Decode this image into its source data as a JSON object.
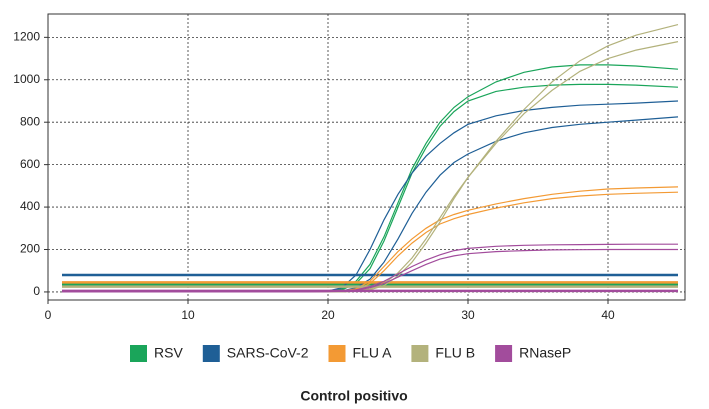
{
  "chart_data": {
    "type": "line",
    "title": "Control positivo",
    "x": [
      1,
      5,
      10,
      15,
      18,
      20,
      21,
      22,
      23,
      24,
      25,
      26,
      27,
      28,
      29,
      30,
      32,
      34,
      36,
      38,
      40,
      42,
      45
    ],
    "xlim": [
      0,
      45.5
    ],
    "xticks": [
      0,
      10,
      20,
      30,
      40
    ],
    "ylim": [
      -38,
      1310
    ],
    "yticks": [
      0,
      200,
      400,
      600,
      800,
      1000,
      1200
    ],
    "grid": true,
    "series": [
      {
        "name": "RSV",
        "color": "#1aa55a",
        "threshold": 35,
        "curves": [
          [
            0,
            0,
            0,
            0,
            0,
            5,
            15,
            50,
            130,
            260,
            420,
            580,
            700,
            800,
            870,
            920,
            990,
            1035,
            1060,
            1070,
            1070,
            1065,
            1050
          ],
          [
            0,
            0,
            0,
            0,
            0,
            3,
            10,
            40,
            110,
            240,
            400,
            560,
            680,
            780,
            850,
            900,
            945,
            965,
            975,
            978,
            978,
            975,
            965
          ]
        ]
      },
      {
        "name": "SARS-CoV-2",
        "color": "#1f5f96",
        "threshold": 80,
        "curves": [
          [
            0,
            0,
            0,
            0,
            0,
            5,
            20,
            80,
            200,
            340,
            460,
            560,
            640,
            700,
            750,
            790,
            830,
            855,
            870,
            880,
            885,
            890,
            900
          ],
          [
            0,
            0,
            0,
            0,
            0,
            2,
            5,
            20,
            60,
            140,
            250,
            370,
            470,
            550,
            610,
            650,
            710,
            750,
            775,
            790,
            800,
            810,
            825
          ]
        ]
      },
      {
        "name": "FLU A",
        "color": "#f39a34",
        "threshold": 45,
        "curves": [
          [
            0,
            0,
            0,
            0,
            0,
            2,
            5,
            15,
            50,
            120,
            190,
            250,
            300,
            340,
            365,
            385,
            415,
            440,
            460,
            475,
            485,
            490,
            495
          ],
          [
            0,
            0,
            0,
            0,
            0,
            1,
            3,
            10,
            40,
            100,
            170,
            230,
            280,
            320,
            345,
            365,
            395,
            420,
            440,
            452,
            460,
            465,
            470
          ]
        ]
      },
      {
        "name": "FLU B",
        "color": "#b3b27c",
        "threshold": 25,
        "curves": [
          [
            0,
            0,
            0,
            0,
            0,
            0,
            0,
            5,
            15,
            40,
            90,
            160,
            250,
            350,
            450,
            540,
            710,
            860,
            990,
            1090,
            1160,
            1210,
            1260
          ],
          [
            0,
            0,
            0,
            0,
            0,
            0,
            0,
            3,
            10,
            30,
            75,
            140,
            230,
            330,
            440,
            540,
            700,
            840,
            950,
            1040,
            1100,
            1140,
            1180
          ]
        ]
      },
      {
        "name": "RNaseP",
        "color": "#a24c9c",
        "threshold": 5,
        "curves": [
          [
            0,
            0,
            0,
            0,
            0,
            2,
            5,
            10,
            25,
            50,
            85,
            120,
            150,
            175,
            195,
            205,
            215,
            220,
            222,
            223,
            224,
            225,
            225
          ],
          [
            0,
            0,
            0,
            0,
            0,
            1,
            3,
            8,
            20,
            40,
            70,
            100,
            130,
            155,
            170,
            180,
            190,
            195,
            198,
            199,
            200,
            200,
            200
          ]
        ]
      }
    ]
  }
}
